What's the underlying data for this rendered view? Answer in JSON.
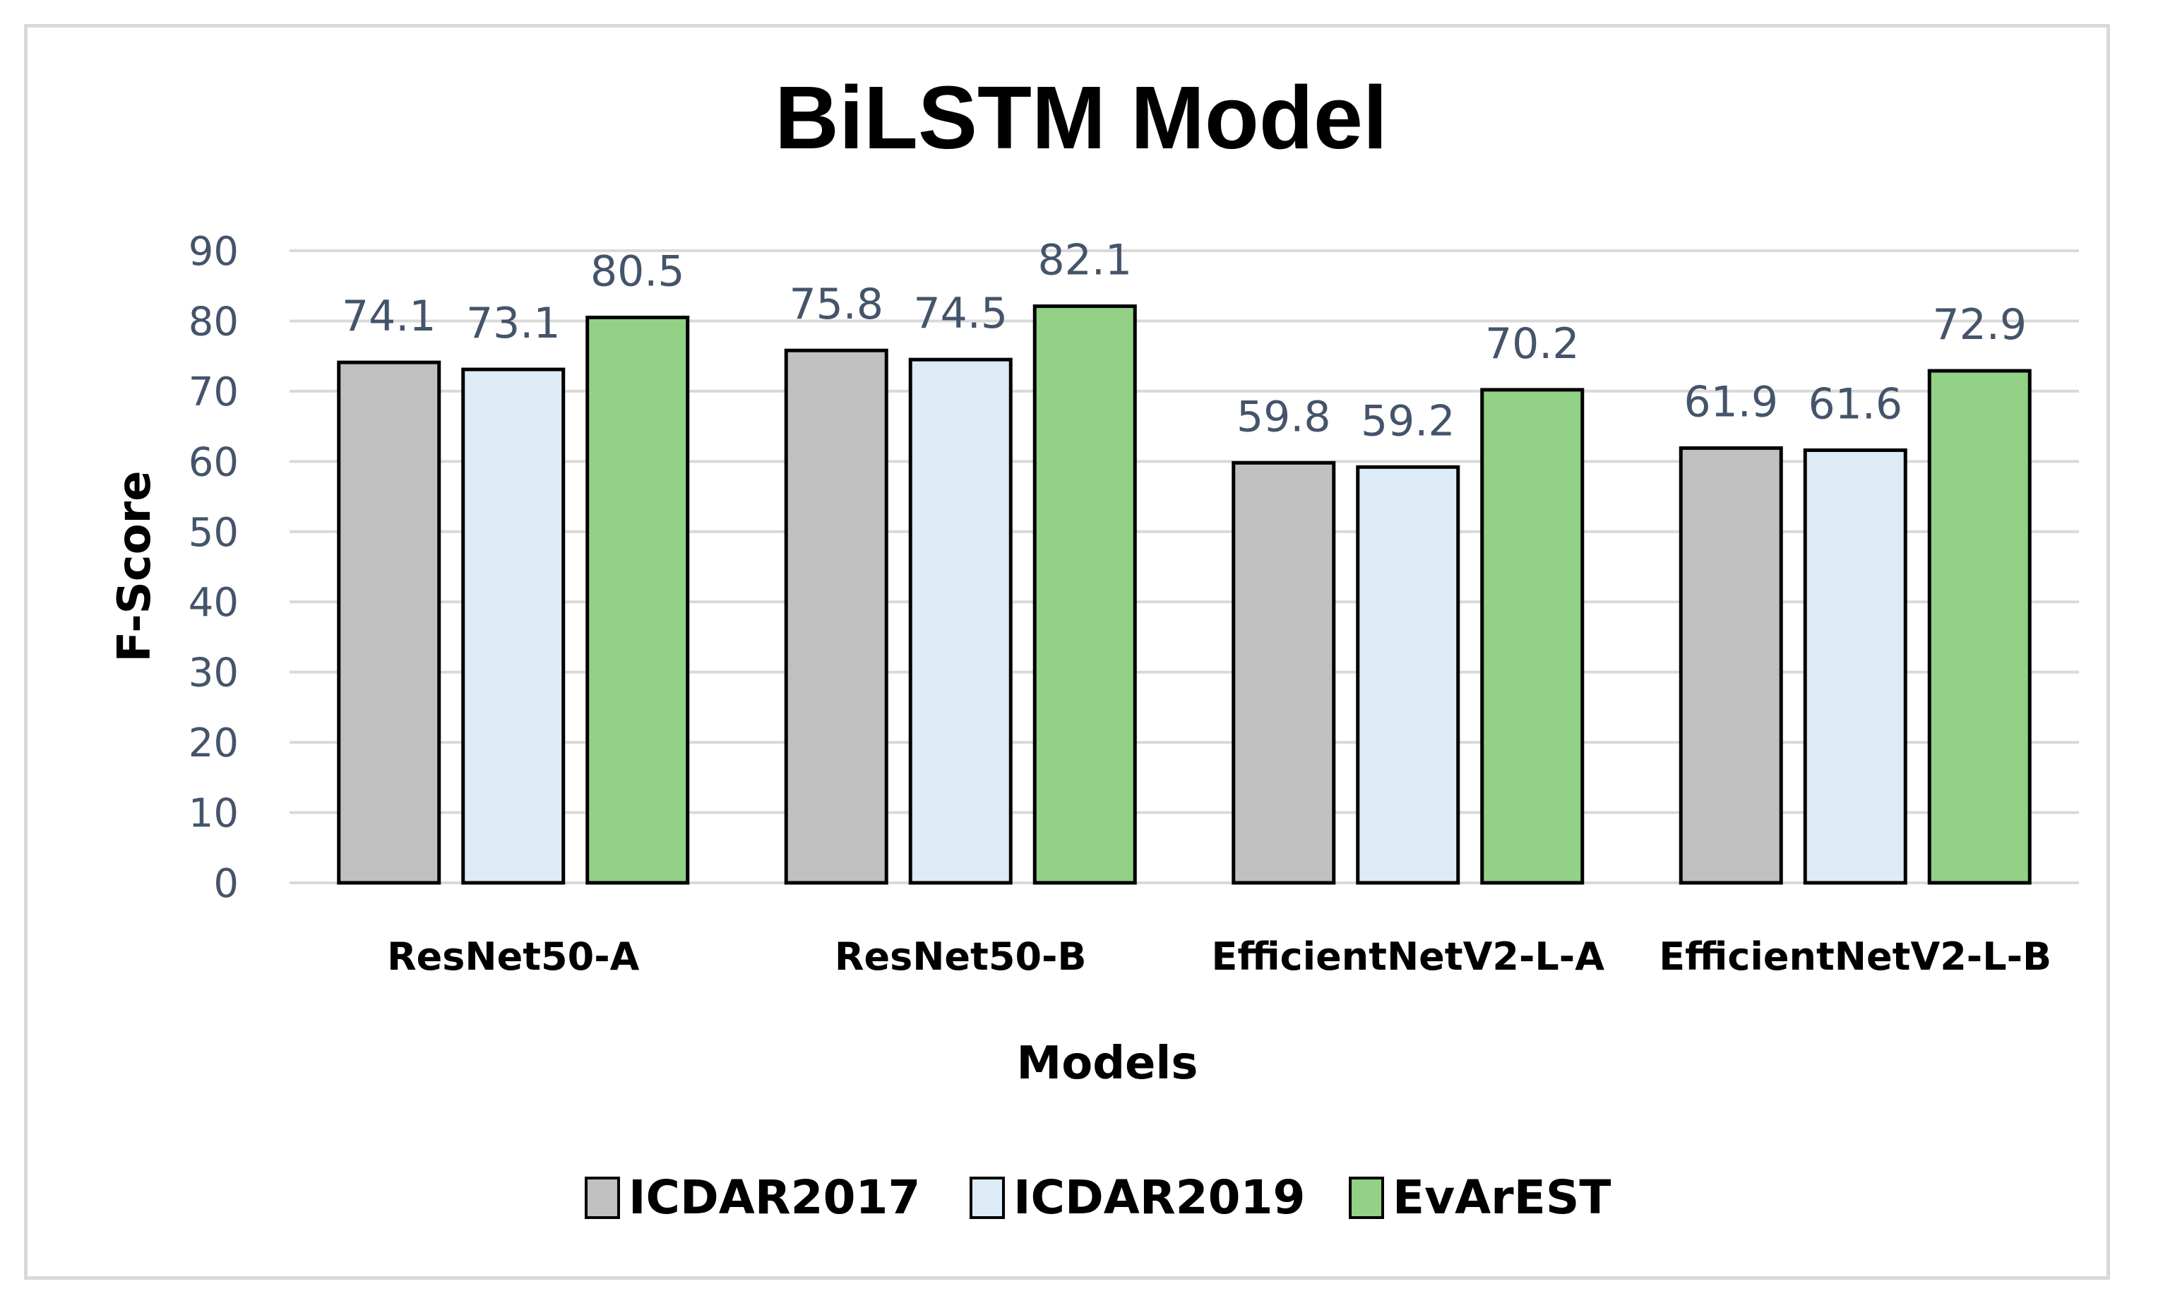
{
  "chart_data": {
    "type": "bar",
    "title": "BiLSTM Model",
    "xlabel": "Models",
    "ylabel": "F-Score",
    "ylim": [
      0,
      90
    ],
    "yticks": [
      "0",
      "10",
      "20",
      "30",
      "40",
      "50",
      "60",
      "70",
      "80",
      "90"
    ],
    "grid": true,
    "legend_position": "bottom",
    "categories": [
      "ResNet50-A",
      "ResNet50-B",
      "EfficientNetV2-L-A",
      "EfficientNetV2-L-B"
    ],
    "series": [
      {
        "name": "ICDAR2017",
        "color": "#c0c0c0",
        "values": [
          74.1,
          75.8,
          59.8,
          61.9
        ],
        "labels": [
          "74.1",
          "75.8",
          "59.8",
          "61.9"
        ]
      },
      {
        "name": "ICDAR2019",
        "color": "#ddebf7",
        "values": [
          73.1,
          74.5,
          59.2,
          61.6
        ],
        "labels": [
          "73.1",
          "74.5",
          "59.2",
          "61.6"
        ]
      },
      {
        "name": "EvArEST",
        "color": "#92d186",
        "values": [
          80.5,
          82.1,
          70.2,
          72.9
        ],
        "labels": [
          "80.5",
          "82.1",
          "70.2",
          "72.9"
        ]
      }
    ]
  }
}
